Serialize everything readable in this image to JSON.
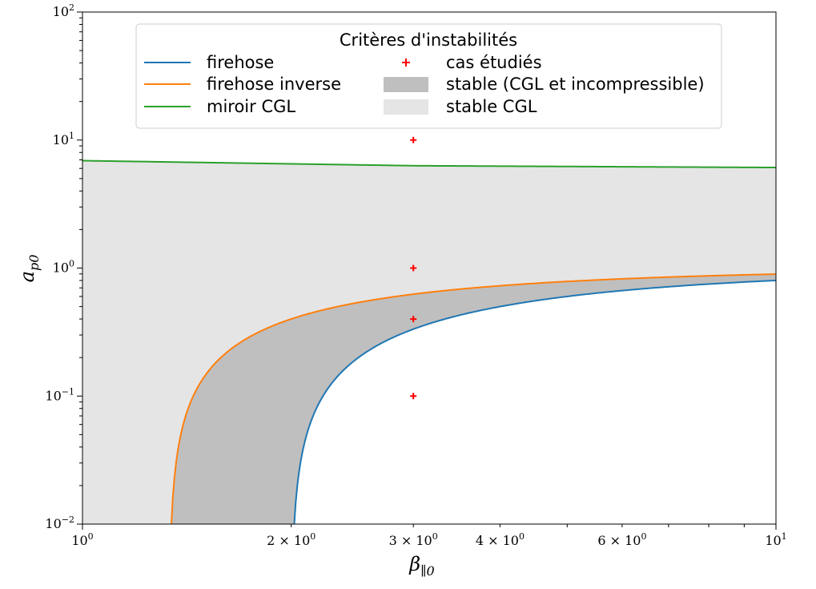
{
  "chart_data": {
    "type": "line",
    "xscale": "log",
    "yscale": "log",
    "xlim": [
      1,
      10
    ],
    "ylim": [
      0.01,
      100
    ],
    "xlabel": "β∥0",
    "ylabel": "a_p0",
    "x_ticks": [
      {
        "value": 1,
        "mantissa": "",
        "exp": "0"
      },
      {
        "value": 2,
        "mantissa": "2 × 10",
        "exp": "0"
      },
      {
        "value": 3,
        "mantissa": "3 × 10",
        "exp": "0"
      },
      {
        "value": 4,
        "mantissa": "4 × 10",
        "exp": "0"
      },
      {
        "value": 6,
        "mantissa": "6 × 10",
        "exp": "0"
      },
      {
        "value": 10,
        "mantissa": "",
        "exp": "1"
      }
    ],
    "y_ticks": [
      {
        "value": 0.01,
        "exp": "−2"
      },
      {
        "value": 0.1,
        "exp": "−1"
      },
      {
        "value": 1,
        "exp": "0"
      },
      {
        "value": 10,
        "exp": "1"
      },
      {
        "value": 100,
        "exp": "2"
      }
    ],
    "series": [
      {
        "name": "firehose",
        "color": "#1f77b4",
        "formula": "1 - 2/beta",
        "sample_points": [
          [
            2.0,
            0.0
          ],
          [
            3.0,
            0.333
          ],
          [
            6.0,
            0.667
          ],
          [
            10.0,
            0.8
          ]
        ]
      },
      {
        "name": "firehose inverse",
        "color": "#ff7f0e",
        "formula": "1 - 1/(beta - 1/3)",
        "sample_points": [
          [
            1.333,
            0.0
          ],
          [
            3.0,
            0.625
          ],
          [
            6.0,
            0.824
          ],
          [
            10.0,
            0.897
          ]
        ]
      },
      {
        "name": "miroir CGL",
        "color": "#2ca02c",
        "sample_points": [
          [
            1.0,
            6.9
          ],
          [
            3.0,
            6.3
          ],
          [
            10.0,
            6.1
          ]
        ]
      }
    ],
    "cases": {
      "name": "cas étudiés",
      "color": "#ff0000",
      "marker": "+",
      "points": [
        [
          3,
          10
        ],
        [
          3,
          1
        ],
        [
          3,
          0.4
        ],
        [
          3,
          0.1
        ]
      ]
    },
    "regions": [
      {
        "name": "stable (CGL et incompressible)",
        "color": "#bfbfbf",
        "between": [
          "firehose",
          "firehose inverse"
        ]
      },
      {
        "name": "stable CGL",
        "color": "#e5e5e5",
        "between": [
          "firehose",
          "miroir CGL"
        ]
      }
    ],
    "legend": {
      "title": "Critères d'instabilités",
      "placement": "top-center"
    },
    "grid": false
  }
}
